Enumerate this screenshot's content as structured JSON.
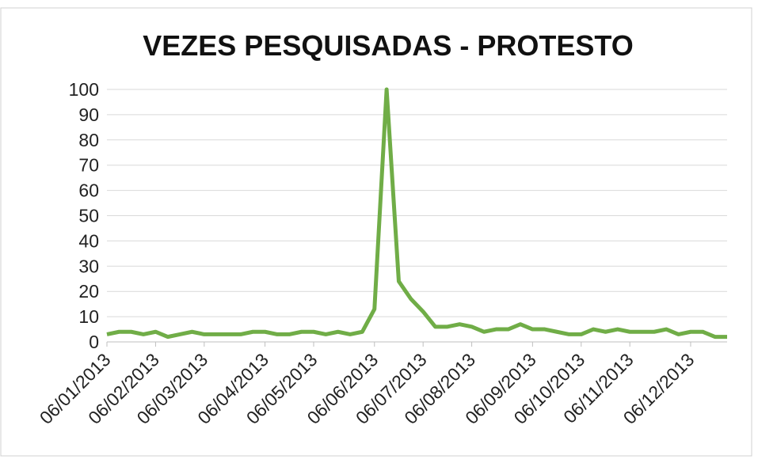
{
  "chart_data": {
    "type": "line",
    "title": "VEZES PESQUISADAS  - PROTESTO",
    "categories": [
      "06/01/2013",
      null,
      null,
      null,
      "06/02/2013",
      null,
      null,
      null,
      "06/03/2013",
      null,
      null,
      null,
      null,
      "06/04/2013",
      null,
      null,
      null,
      "06/05/2013",
      null,
      null,
      null,
      null,
      "06/06/2013",
      null,
      null,
      null,
      "06/07/2013",
      null,
      null,
      null,
      "06/08/2013",
      null,
      null,
      null,
      null,
      "06/09/2013",
      null,
      null,
      null,
      "06/10/2013",
      null,
      null,
      null,
      "06/11/2013",
      null,
      null,
      null,
      null,
      "06/12/2013",
      null,
      null,
      null
    ],
    "series": [
      {
        "name": "protesto",
        "color": "#70ad47",
        "values": [
          3,
          4,
          4,
          3,
          4,
          2,
          3,
          4,
          3,
          3,
          3,
          3,
          4,
          4,
          3,
          3,
          4,
          4,
          3,
          4,
          3,
          4,
          13,
          100,
          24,
          17,
          12,
          6,
          6,
          7,
          6,
          4,
          5,
          5,
          7,
          5,
          5,
          4,
          3,
          3,
          5,
          4,
          5,
          4,
          4,
          4,
          5,
          3,
          4,
          4,
          2,
          2
        ]
      }
    ],
    "ylim": [
      0,
      100
    ],
    "yticks": [
      0,
      10,
      20,
      30,
      40,
      50,
      60,
      70,
      80,
      90,
      100
    ],
    "grid": true
  }
}
